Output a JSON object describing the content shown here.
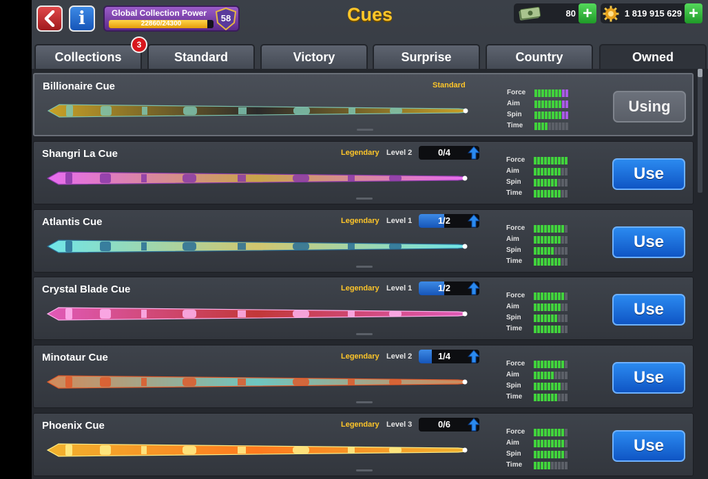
{
  "header": {
    "title": "Cues",
    "collection_power": {
      "label": "Global Collection Power",
      "progress_text": "22860/24300",
      "progress_fraction": 0.94,
      "level": "58"
    },
    "cash": {
      "value": "80"
    },
    "coins": {
      "value": "1 819 915 629"
    }
  },
  "tabs": [
    {
      "label": "Collections",
      "badge": "3"
    },
    {
      "label": "Standard"
    },
    {
      "label": "Victory"
    },
    {
      "label": "Surprise"
    },
    {
      "label": "Country"
    },
    {
      "label": "Owned",
      "active": true
    }
  ],
  "cues": [
    {
      "name": "Billionaire Cue",
      "tier": "Standard",
      "level_label": "",
      "progress_text": "",
      "progress_fraction": 0,
      "stats": {
        "force": 10,
        "aim": 10,
        "spin": 10,
        "time": 4
      },
      "button": "Using",
      "palette": [
        "#c9a227",
        "#2a2a2a",
        "#7ec4b0"
      ]
    },
    {
      "name": "Shangri La Cue",
      "tier": "Legendary",
      "level_label": "Level 2",
      "progress_text": "0/4",
      "progress_fraction": 0,
      "stats": {
        "force": 10,
        "aim": 8,
        "spin": 7,
        "time": 8
      },
      "button": "Use",
      "palette": [
        "#e86cf0",
        "#c9a44a",
        "#8a3aa8"
      ]
    },
    {
      "name": "Atlantis Cue",
      "tier": "Legendary",
      "level_label": "Level 1",
      "progress_text": "1/2",
      "progress_fraction": 0.5,
      "stats": {
        "force": 9,
        "aim": 8,
        "spin": 6,
        "time": 8
      },
      "button": "Use",
      "palette": [
        "#6ee6ea",
        "#d2c66e",
        "#2a6e96"
      ]
    },
    {
      "name": "Crystal Blade Cue",
      "tier": "Legendary",
      "level_label": "Level 1",
      "progress_text": "1/2",
      "progress_fraction": 0.5,
      "stats": {
        "force": 9,
        "aim": 8,
        "spin": 7,
        "time": 8
      },
      "button": "Use",
      "palette": [
        "#e05ab8",
        "#c23838",
        "#ffb4f0"
      ]
    },
    {
      "name": "Minotaur Cue",
      "tier": "Legendary",
      "level_label": "Level 2",
      "progress_text": "1/4",
      "progress_fraction": 0.25,
      "stats": {
        "force": 9,
        "aim": 6,
        "spin": 8,
        "time": 7
      },
      "button": "Use",
      "palette": [
        "#d28a5a",
        "#6ec6c0",
        "#e05a2a"
      ]
    },
    {
      "name": "Phoenix Cue",
      "tier": "Legendary",
      "level_label": "Level 3",
      "progress_text": "0/6",
      "progress_fraction": 0,
      "stats": {
        "force": 9,
        "aim": 9,
        "spin": 9,
        "time": 5
      },
      "button": "Use",
      "palette": [
        "#f0b22e",
        "#ff7a1e",
        "#fff08a"
      ]
    }
  ],
  "stat_labels": {
    "force": "Force",
    "aim": "Aim",
    "spin": "Spin",
    "time": "Time"
  },
  "colors": {
    "accent_gold": "#ffc629",
    "stat_green": "#41d33c",
    "stat_purple": "#a95ae6",
    "use_blue": "#1a6fe0"
  }
}
